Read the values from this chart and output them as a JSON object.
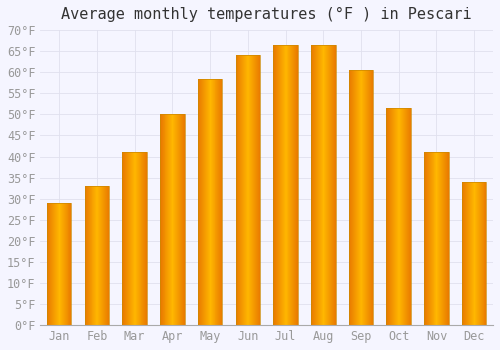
{
  "title": "Average monthly temperatures (°F ) in Pescari",
  "months": [
    "Jan",
    "Feb",
    "Mar",
    "Apr",
    "May",
    "Jun",
    "Jul",
    "Aug",
    "Sep",
    "Oct",
    "Nov",
    "Dec"
  ],
  "values": [
    29,
    33,
    41,
    50,
    58.5,
    64,
    66.5,
    66.5,
    60.5,
    51.5,
    41,
    34
  ],
  "bar_color_center": "#FFB700",
  "bar_color_edge": "#E87800",
  "background_color": "#F5F5FF",
  "grid_color": "#E0E0EE",
  "ylim": [
    0,
    70
  ],
  "ytick_step": 5,
  "title_fontsize": 11,
  "tick_fontsize": 8.5,
  "tick_color": "#999999",
  "title_color": "#333333",
  "bar_width": 0.65
}
